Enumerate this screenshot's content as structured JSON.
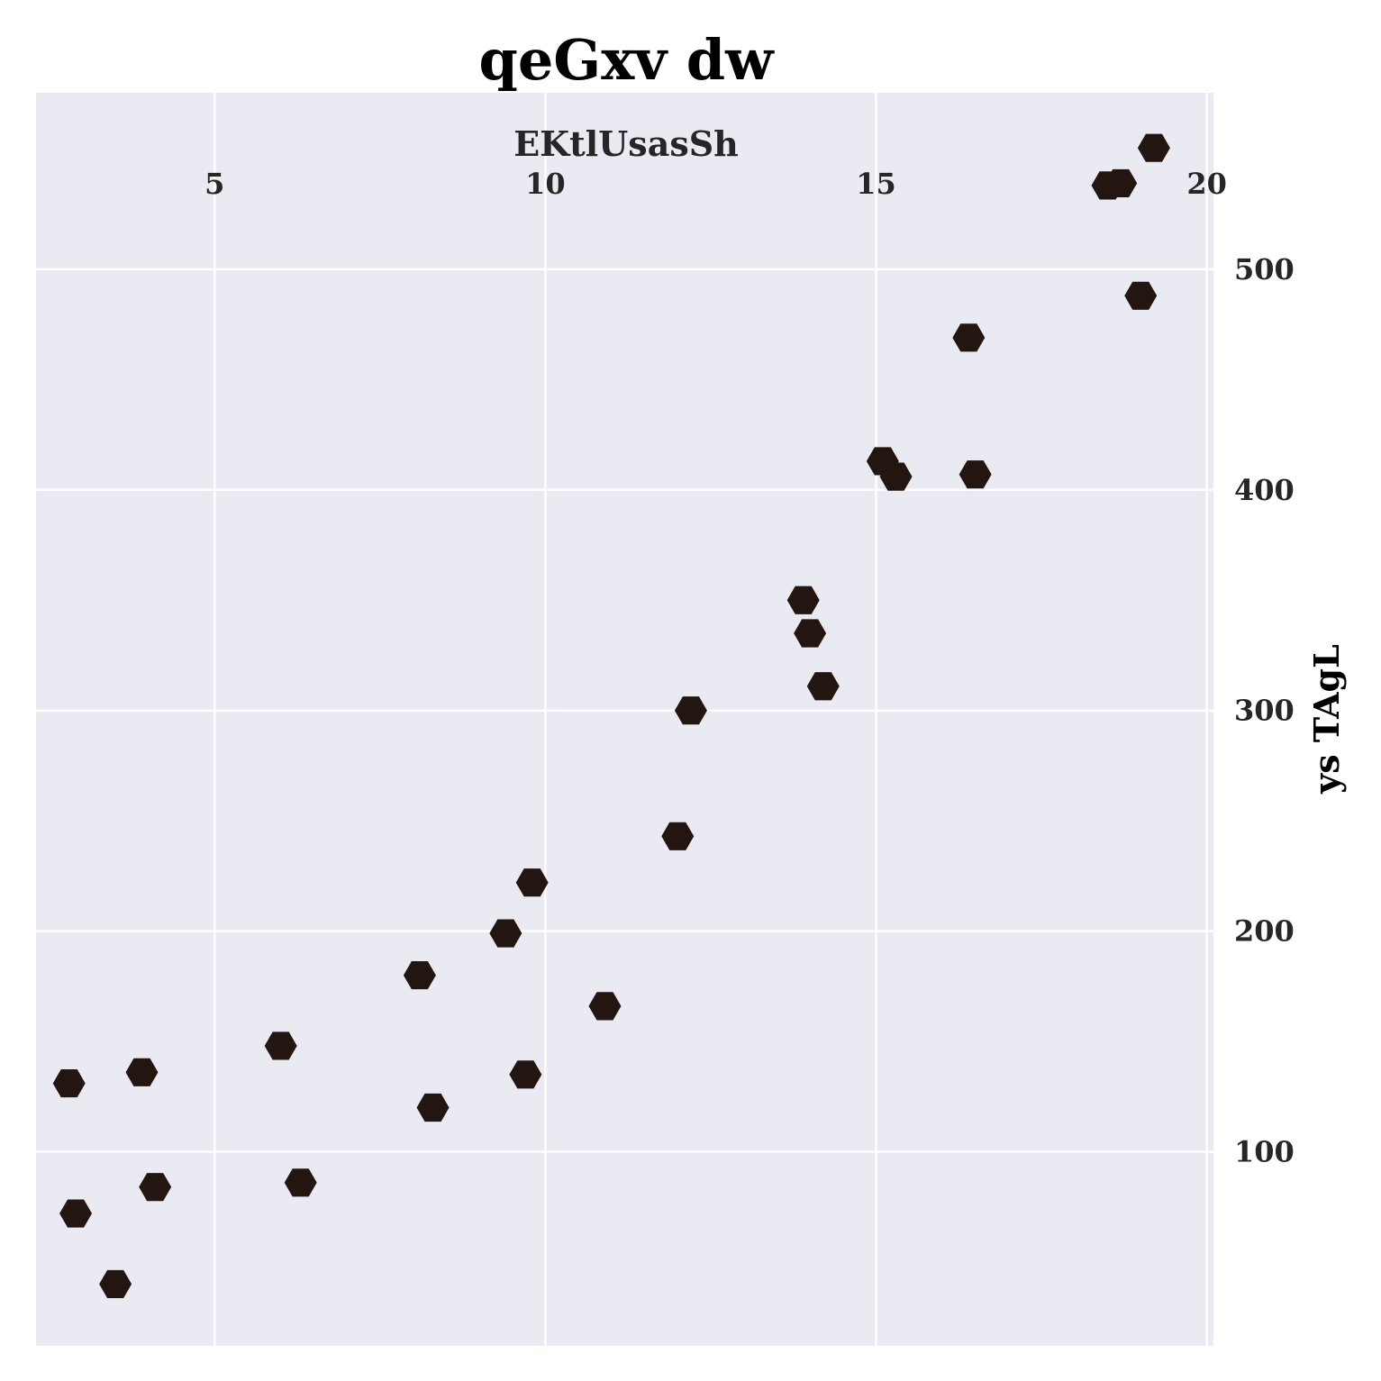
{
  "chart_data": {
    "type": "scatter",
    "title": "qeGxv dw",
    "xlabel": "EKtlUsasSh",
    "ylabel": "ys TAgL",
    "xlim": [
      2.3,
      20.1
    ],
    "ylim": [
      12,
      580
    ],
    "x_ticks": [
      5,
      10,
      15,
      20
    ],
    "y_ticks": [
      100,
      200,
      300,
      400,
      500
    ],
    "x_axis_position": "top",
    "y_axis_position": "right",
    "grid": true,
    "marker": "hexagon",
    "colors": {
      "background": "#eaeaf2",
      "marker": "#231510",
      "grid": "#ffffff"
    },
    "points": [
      {
        "x": 19.2,
        "y": 555
      },
      {
        "x": 18.7,
        "y": 539
      },
      {
        "x": 18.5,
        "y": 538
      },
      {
        "x": 19.0,
        "y": 488
      },
      {
        "x": 16.4,
        "y": 469
      },
      {
        "x": 15.1,
        "y": 413
      },
      {
        "x": 15.3,
        "y": 406
      },
      {
        "x": 16.5,
        "y": 407
      },
      {
        "x": 13.9,
        "y": 350
      },
      {
        "x": 14.0,
        "y": 335
      },
      {
        "x": 14.2,
        "y": 311
      },
      {
        "x": 12.2,
        "y": 300
      },
      {
        "x": 12.0,
        "y": 243
      },
      {
        "x": 9.8,
        "y": 222
      },
      {
        "x": 9.4,
        "y": 199
      },
      {
        "x": 8.1,
        "y": 180
      },
      {
        "x": 10.9,
        "y": 166
      },
      {
        "x": 6.0,
        "y": 148
      },
      {
        "x": 3.9,
        "y": 136
      },
      {
        "x": 2.8,
        "y": 131
      },
      {
        "x": 9.7,
        "y": 135
      },
      {
        "x": 8.3,
        "y": 120
      },
      {
        "x": 6.3,
        "y": 86
      },
      {
        "x": 4.1,
        "y": 84
      },
      {
        "x": 2.9,
        "y": 72
      },
      {
        "x": 3.5,
        "y": 40
      }
    ]
  }
}
